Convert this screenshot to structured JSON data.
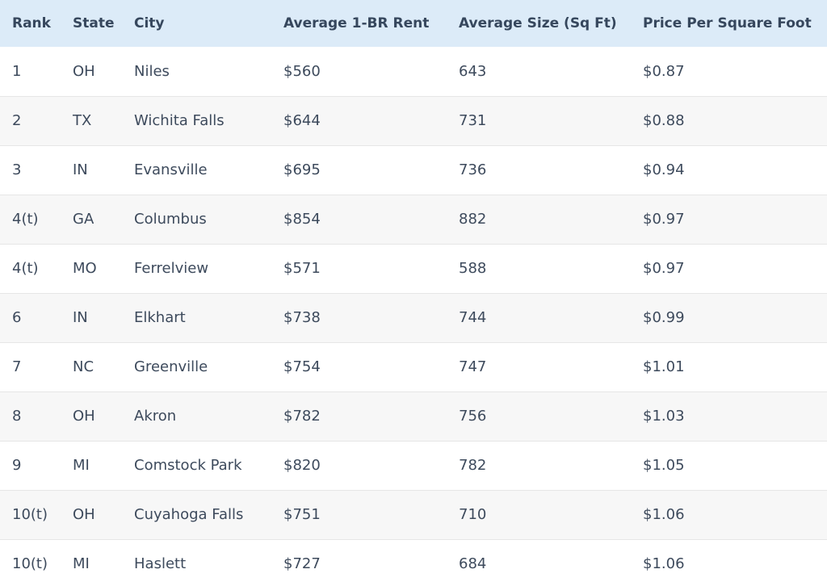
{
  "table": {
    "headers": [
      "Rank",
      "State",
      "City",
      "Average 1-BR Rent",
      "Average Size (Sq Ft)",
      "Price Per Square Foot"
    ],
    "rows": [
      [
        "1",
        "OH",
        "Niles",
        "$560",
        "643",
        "$0.87"
      ],
      [
        "2",
        "TX",
        "Wichita Falls",
        "$644",
        "731",
        "$0.88"
      ],
      [
        "3",
        "IN",
        "Evansville",
        "$695",
        "736",
        "$0.94"
      ],
      [
        "4(t)",
        "GA",
        "Columbus",
        "$854",
        "882",
        "$0.97"
      ],
      [
        "4(t)",
        "MO",
        "Ferrelview",
        "$571",
        "588",
        "$0.97"
      ],
      [
        "6",
        "IN",
        "Elkhart",
        "$738",
        "744",
        "$0.99"
      ],
      [
        "7",
        "NC",
        "Greenville",
        "$754",
        "747",
        "$1.01"
      ],
      [
        "8",
        "OH",
        "Akron",
        "$782",
        "756",
        "$1.03"
      ],
      [
        "9",
        "MI",
        "Comstock Park",
        "$820",
        "782",
        "$1.05"
      ],
      [
        "10(t)",
        "OH",
        "Cuyahoga Falls",
        "$751",
        "710",
        "$1.06"
      ],
      [
        "10(t)",
        "MI",
        "Haslett",
        "$727",
        "684",
        "$1.06"
      ]
    ]
  }
}
